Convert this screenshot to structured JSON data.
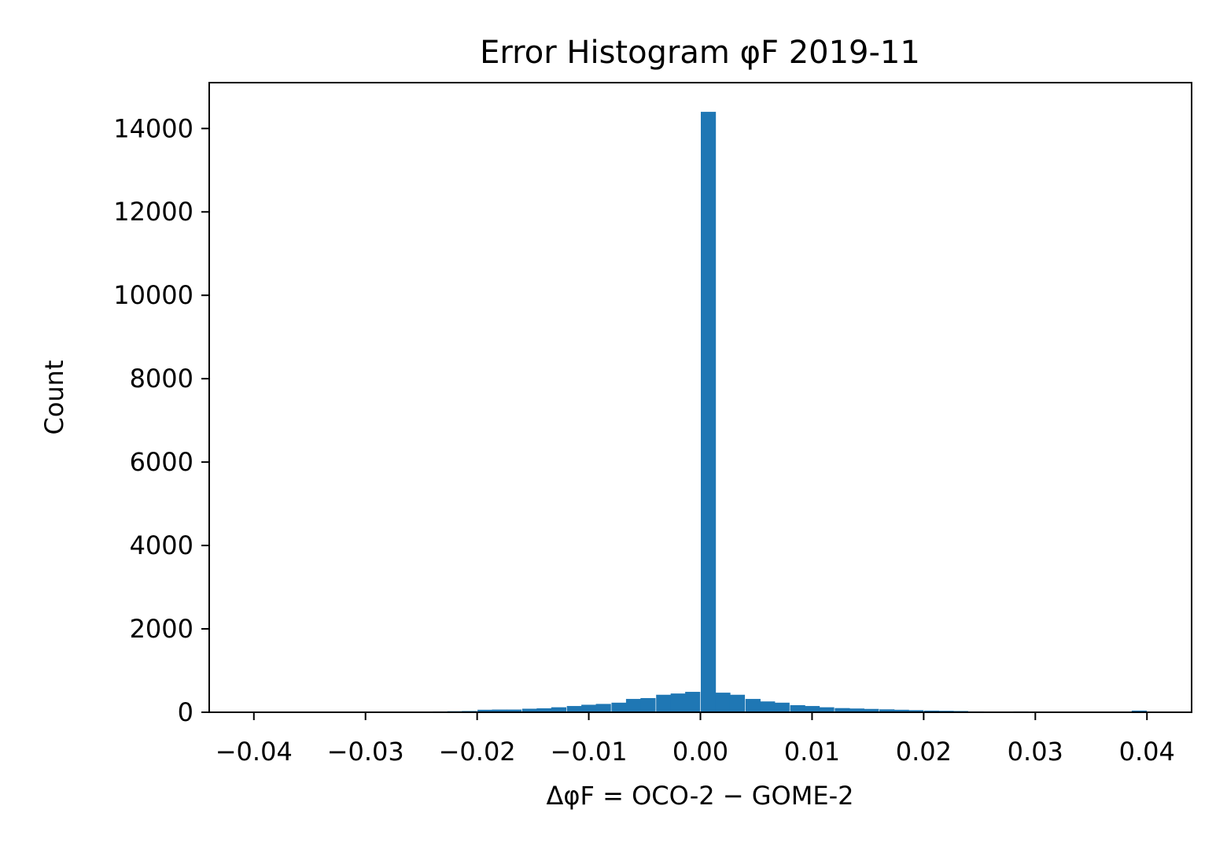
{
  "chart_data": {
    "type": "bar",
    "title": "Error Histogram φF  2019-11",
    "xlabel": "ΔφF = OCO-2 − GOME-2",
    "ylabel": "Count",
    "xlim": [
      -0.044,
      0.044
    ],
    "ylim": [
      0,
      15100
    ],
    "x_ticks": [
      -0.04,
      -0.03,
      -0.02,
      -0.01,
      0.0,
      0.01,
      0.02,
      0.03,
      0.04
    ],
    "x_tick_labels": [
      "−0.04",
      "−0.03",
      "−0.02",
      "−0.01",
      "0.00",
      "0.01",
      "0.02",
      "0.03",
      "0.04"
    ],
    "y_ticks": [
      0,
      2000,
      4000,
      6000,
      8000,
      10000,
      12000,
      14000
    ],
    "y_tick_labels": [
      "0",
      "2000",
      "4000",
      "6000",
      "8000",
      "10000",
      "12000",
      "14000"
    ],
    "bin_width": 0.00133,
    "series": [
      {
        "color": "#1f77b4",
        "bins": [
          {
            "x": -0.0407,
            "count": 5
          },
          {
            "x": -0.0393,
            "count": 5
          },
          {
            "x": -0.038,
            "count": 5
          },
          {
            "x": -0.0367,
            "count": 5
          },
          {
            "x": -0.0353,
            "count": 5
          },
          {
            "x": -0.034,
            "count": 5
          },
          {
            "x": -0.0327,
            "count": 5
          },
          {
            "x": -0.0313,
            "count": 5
          },
          {
            "x": -0.03,
            "count": 5
          },
          {
            "x": -0.0287,
            "count": 8
          },
          {
            "x": -0.0273,
            "count": 10
          },
          {
            "x": -0.026,
            "count": 12
          },
          {
            "x": -0.0247,
            "count": 15
          },
          {
            "x": -0.0233,
            "count": 20
          },
          {
            "x": -0.022,
            "count": 25
          },
          {
            "x": -0.0207,
            "count": 30
          },
          {
            "x": -0.0193,
            "count": 60
          },
          {
            "x": -0.018,
            "count": 65
          },
          {
            "x": -0.0167,
            "count": 65
          },
          {
            "x": -0.0153,
            "count": 85
          },
          {
            "x": -0.014,
            "count": 95
          },
          {
            "x": -0.0127,
            "count": 120
          },
          {
            "x": -0.0113,
            "count": 150
          },
          {
            "x": -0.01,
            "count": 180
          },
          {
            "x": -0.0087,
            "count": 200
          },
          {
            "x": -0.0073,
            "count": 230
          },
          {
            "x": -0.006,
            "count": 320
          },
          {
            "x": -0.0047,
            "count": 340
          },
          {
            "x": -0.0033,
            "count": 420
          },
          {
            "x": -0.002,
            "count": 450
          },
          {
            "x": -0.0007,
            "count": 490
          },
          {
            "x": 0.0007,
            "count": 14400
          },
          {
            "x": 0.002,
            "count": 470
          },
          {
            "x": 0.0033,
            "count": 420
          },
          {
            "x": 0.0047,
            "count": 320
          },
          {
            "x": 0.006,
            "count": 260
          },
          {
            "x": 0.0073,
            "count": 230
          },
          {
            "x": 0.0087,
            "count": 170
          },
          {
            "x": 0.01,
            "count": 150
          },
          {
            "x": 0.0113,
            "count": 120
          },
          {
            "x": 0.0127,
            "count": 100
          },
          {
            "x": 0.014,
            "count": 90
          },
          {
            "x": 0.0153,
            "count": 80
          },
          {
            "x": 0.0167,
            "count": 70
          },
          {
            "x": 0.018,
            "count": 60
          },
          {
            "x": 0.0193,
            "count": 50
          },
          {
            "x": 0.0207,
            "count": 40
          },
          {
            "x": 0.022,
            "count": 35
          },
          {
            "x": 0.0233,
            "count": 30
          },
          {
            "x": 0.0247,
            "count": 20
          },
          {
            "x": 0.026,
            "count": 15
          },
          {
            "x": 0.0273,
            "count": 10
          },
          {
            "x": 0.0287,
            "count": 20
          },
          {
            "x": 0.03,
            "count": 8
          },
          {
            "x": 0.0313,
            "count": 5
          },
          {
            "x": 0.0327,
            "count": 5
          },
          {
            "x": 0.034,
            "count": 5
          },
          {
            "x": 0.0353,
            "count": 5
          },
          {
            "x": 0.0367,
            "count": 5
          },
          {
            "x": 0.038,
            "count": 5
          },
          {
            "x": 0.0393,
            "count": 40
          }
        ]
      }
    ],
    "grid": false,
    "legend": "none"
  }
}
